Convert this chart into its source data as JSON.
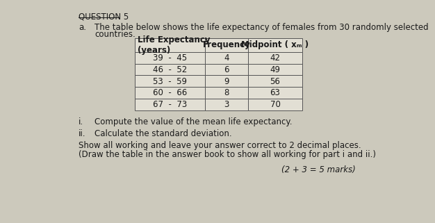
{
  "question_label": "QUESTION 5",
  "part_label": "a.",
  "intro_text_1": "The table below shows the life expectancy of females from 30 randomly selected",
  "intro_text_2": "countries.",
  "col_headers": [
    "Life Expectancy\n(years)",
    "Frequency",
    "Midpoint ( xₘ )"
  ],
  "rows": [
    [
      "39  -  45",
      "4",
      "42"
    ],
    [
      "46  -  52",
      "6",
      "49"
    ],
    [
      "53  -  59",
      "9",
      "56"
    ],
    [
      "60  -  66",
      "8",
      "63"
    ],
    [
      "67  -  73",
      "3",
      "70"
    ]
  ],
  "sub_i": "i.",
  "text_i": "Compute the value of the mean life expectancy.",
  "sub_ii": "ii.",
  "text_ii": "Calculate the standard deviation.",
  "note1": "Show all working and leave your answer correct to 2 decimal places.",
  "note2": "(Draw the table in the answer book to show all working for part i and ii.)",
  "marks": "(2 + 3 = 5 marks)",
  "bg_color": "#ccc9bc",
  "cell_bg": "#e2dfd4",
  "text_color": "#1a1a1a",
  "font_size": 8.5,
  "font_size_q": 8.5,
  "font_size_marks": 8.5
}
